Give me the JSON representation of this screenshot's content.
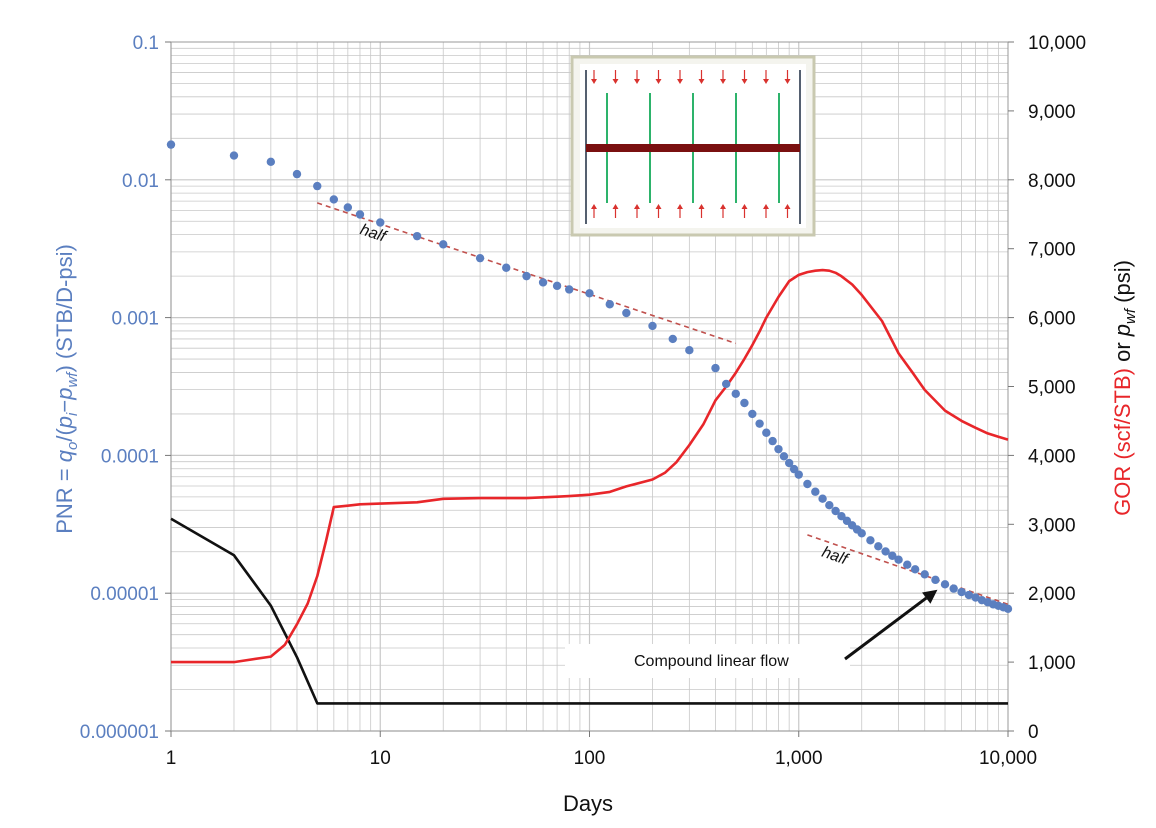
{
  "colors": {
    "pnr": "#5b7fc0",
    "gor": "#e8262a",
    "pressure": "#111111",
    "trend": "#c0504d",
    "grid": "#c8c8c8",
    "inset_frac": "#7a1010",
    "inset_fracture": "#2db36b",
    "inset_arrow": "#d9322e"
  },
  "chart_data": {
    "type": "scatter",
    "x_scale": "log",
    "xlim": [
      1,
      10000
    ],
    "xlabel": "Days",
    "x_ticks": [
      1,
      10,
      100,
      1000,
      10000
    ],
    "x_tick_labels": [
      "1",
      "10",
      "100",
      "1,000",
      "10,000"
    ],
    "y_left": {
      "scale": "log",
      "lim": [
        1e-06,
        0.1
      ],
      "ticks": [
        1e-06,
        1e-05,
        0.0001,
        0.001,
        0.01,
        0.1
      ],
      "tick_labels": [
        "0.000001",
        "0.00001",
        "0.0001",
        "0.001",
        "0.01",
        "0.1"
      ],
      "label_parts": {
        "a": "PNR = ",
        "q": "q",
        "q_sub": "o",
        "b": "/(",
        "p": "p",
        "p_sub": "i",
        "minus": "−",
        "p2": "p",
        "p2_sub": "wf",
        "c": ") (STB/D-psi)"
      }
    },
    "y_right": {
      "scale": "linear",
      "lim": [
        0,
        10000
      ],
      "ticks": [
        0,
        1000,
        2000,
        3000,
        4000,
        5000,
        6000,
        7000,
        8000,
        9000,
        10000
      ],
      "tick_labels": [
        "0",
        "1,000",
        "2,000",
        "3,000",
        "4,000",
        "5,000",
        "6,000",
        "7,000",
        "8,000",
        "9,000",
        "10,000"
      ],
      "label_parts": {
        "gor": "GOR (scf/STB)",
        "or": " or ",
        "p": "p",
        "p_sub": "wf",
        "unit": " (psi)"
      }
    },
    "grid": true,
    "series": [
      {
        "axis": "left",
        "kind": "points",
        "x": [
          1,
          2,
          3,
          4,
          5,
          6,
          7,
          8,
          10,
          15,
          20,
          30,
          40,
          50,
          60,
          70,
          80,
          100,
          125,
          150,
          200,
          250,
          300,
          400,
          450,
          500,
          550,
          600,
          650,
          700,
          750,
          800,
          850,
          900,
          950,
          1000,
          1100,
          1200,
          1300,
          1400,
          1500,
          1600,
          1700,
          1800,
          1900,
          2000,
          2200,
          2400,
          2600,
          2800,
          3000,
          3300,
          3600,
          4000,
          4500,
          5000,
          5500,
          6000,
          6500,
          7000,
          7500,
          8000,
          8500,
          9000,
          9500,
          10000
        ],
        "y": [
          0.018,
          0.015,
          0.0135,
          0.011,
          0.009,
          0.0072,
          0.0063,
          0.0056,
          0.0049,
          0.0039,
          0.0034,
          0.0027,
          0.0023,
          0.002,
          0.0018,
          0.0017,
          0.0016,
          0.0015,
          0.00125,
          0.00108,
          0.00087,
          0.0007,
          0.00058,
          0.00043,
          0.00033,
          0.00028,
          0.00024,
          0.0002,
          0.00017,
          0.000146,
          0.000127,
          0.000111,
          9.85e-05,
          8.8e-05,
          7.95e-05,
          7.25e-05,
          6.2e-05,
          5.45e-05,
          4.85e-05,
          4.35e-05,
          3.95e-05,
          3.62e-05,
          3.35e-05,
          3.11e-05,
          2.9e-05,
          2.72e-05,
          2.42e-05,
          2.19e-05,
          2.01e-05,
          1.87e-05,
          1.75e-05,
          1.61e-05,
          1.49e-05,
          1.37e-05,
          1.25e-05,
          1.16e-05,
          1.08e-05,
          1.02e-05,
          9.7e-06,
          9.3e-06,
          8.9e-06,
          8.6e-06,
          8.3e-06,
          8.1e-06,
          7.9e-06,
          7.7e-06
        ]
      },
      {
        "axis": "right",
        "kind": "line",
        "x": [
          1,
          2,
          3,
          3.5,
          4,
          4.5,
          5,
          5.5,
          6,
          7,
          8,
          10,
          15,
          20,
          30,
          50,
          70,
          80,
          100,
          125,
          150,
          200,
          230,
          260,
          300,
          350,
          400,
          450,
          500,
          550,
          600,
          650,
          700,
          800,
          900,
          1000,
          1100,
          1200,
          1300,
          1400,
          1500,
          1600,
          1800,
          2000,
          2500,
          3000,
          3500,
          4000,
          5000,
          6000,
          7000,
          8000,
          9000,
          10000
        ],
        "y": [
          1000,
          1000,
          1080,
          1250,
          1550,
          1850,
          2250,
          2750,
          3250,
          3270,
          3290,
          3300,
          3320,
          3370,
          3380,
          3380,
          3400,
          3410,
          3430,
          3470,
          3550,
          3650,
          3750,
          3900,
          4150,
          4450,
          4800,
          5000,
          5200,
          5400,
          5600,
          5800,
          6000,
          6300,
          6530,
          6620,
          6660,
          6680,
          6690,
          6680,
          6650,
          6600,
          6480,
          6330,
          5950,
          5480,
          5200,
          4950,
          4650,
          4500,
          4400,
          4320,
          4270,
          4230
        ]
      },
      {
        "axis": "right",
        "kind": "line",
        "x": [
          1,
          2,
          3,
          4,
          5,
          6,
          10,
          100,
          1000,
          10000
        ],
        "y": [
          3080,
          2550,
          1820,
          1070,
          400,
          400,
          400,
          400,
          400,
          400
        ]
      }
    ],
    "trend_lines": [
      {
        "label": "half",
        "x": [
          5,
          500
        ],
        "y": [
          0.0068,
          0.00065
        ]
      },
      {
        "label": "half",
        "x": [
          1100,
          10000
        ],
        "y": [
          2.65e-05,
          8.3e-06
        ]
      }
    ],
    "annotation": {
      "text": "Compound linear flow",
      "arrow_to": {
        "x": 4600,
        "y": 1.06e-05
      }
    }
  }
}
